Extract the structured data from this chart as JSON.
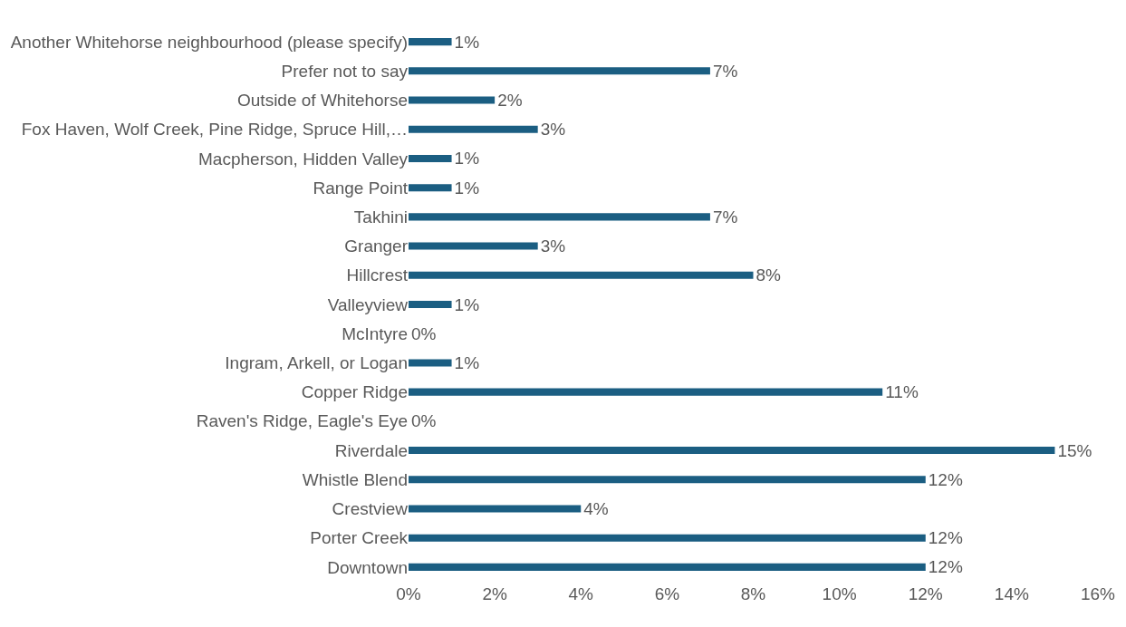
{
  "chart_data": {
    "type": "bar",
    "orientation": "horizontal",
    "categories": [
      "Another Whitehorse neighbourhood (please specify)",
      "Prefer not to say",
      "Outside of Whitehorse",
      "Fox Haven, Wolf Creek, Pine Ridge, Spruce Hill,…",
      "Macpherson, Hidden Valley",
      "Range Point",
      "Takhini",
      "Granger",
      "Hillcrest",
      "Valleyview",
      "McIntyre",
      "Ingram, Arkell, or Logan",
      "Copper Ridge",
      "Raven's Ridge, Eagle's Eye",
      "Riverdale",
      "Whistle Blend",
      "Crestview",
      "Porter Creek",
      "Downtown"
    ],
    "values": [
      1,
      7,
      2,
      3,
      1,
      1,
      7,
      3,
      8,
      1,
      0,
      1,
      11,
      0,
      15,
      12,
      4,
      12,
      12
    ],
    "value_labels": [
      "1%",
      "7%",
      "2%",
      "3%",
      "1%",
      "1%",
      "7%",
      "3%",
      "8%",
      "1%",
      "0%",
      "1%",
      "11%",
      "0%",
      "15%",
      "12%",
      "4%",
      "12%",
      "12%"
    ],
    "color": "#1b5e82",
    "xlim": [
      0,
      16
    ],
    "xticks": [
      {
        "value": 0,
        "label": "0%"
      },
      {
        "value": 2,
        "label": "2%"
      },
      {
        "value": 4,
        "label": "4%"
      },
      {
        "value": 6,
        "label": "6%"
      },
      {
        "value": 8,
        "label": "8%"
      },
      {
        "value": 10,
        "label": "10%"
      },
      {
        "value": 12,
        "label": "12%"
      },
      {
        "value": 14,
        "label": "14%"
      },
      {
        "value": 16,
        "label": "16%"
      }
    ],
    "legend": false
  }
}
